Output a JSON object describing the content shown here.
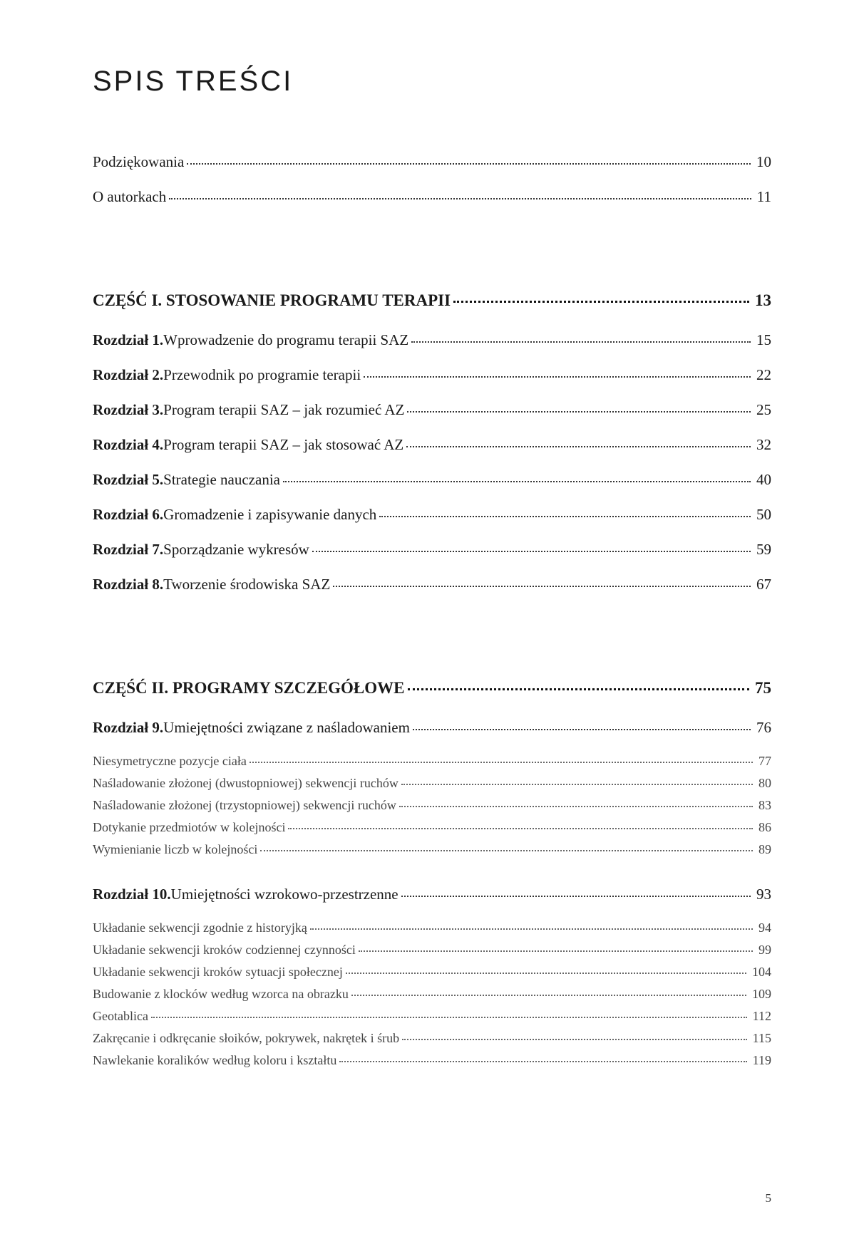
{
  "title": "SPIS TREŚCI",
  "pageNumber": "5",
  "colors": {
    "text": "#1a1a1a",
    "subtext": "#444444",
    "dots": "#333333",
    "background": "#ffffff"
  },
  "typography": {
    "title_fontsize": 40,
    "entry_fontsize": 21,
    "part_fontsize": 23,
    "sub_fontsize": 18
  },
  "intro": [
    {
      "label": "Podziękowania",
      "page": "10"
    },
    {
      "label": "O autorkach",
      "page": "11"
    }
  ],
  "parts": [
    {
      "heading": "CZĘŚĆ I. STOSOWANIE PROGRAMU TERAPII",
      "page": "13",
      "chapters": [
        {
          "prefix": "Rozdział 1.",
          "label": " Wprowadzenie do programu terapii SAZ",
          "page": "15"
        },
        {
          "prefix": "Rozdział 2.",
          "label": " Przewodnik po programie terapii",
          "page": "22"
        },
        {
          "prefix": "Rozdział 3.",
          "label": " Program terapii SAZ – jak rozumieć AZ",
          "page": "25"
        },
        {
          "prefix": "Rozdział 4.",
          "label": " Program terapii SAZ – jak stosować AZ",
          "page": "32"
        },
        {
          "prefix": "Rozdział 5.",
          "label": " Strategie nauczania",
          "page": "40"
        },
        {
          "prefix": "Rozdział 6.",
          "label": " Gromadzenie i zapisywanie danych",
          "page": "50"
        },
        {
          "prefix": "Rozdział 7.",
          "label": " Sporządzanie wykresów",
          "page": "59"
        },
        {
          "prefix": "Rozdział 8.",
          "label": " Tworzenie środowiska SAZ",
          "page": "67"
        }
      ]
    },
    {
      "heading": "CZĘŚĆ II. PROGRAMY SZCZEGÓŁOWE",
      "page": "75",
      "chapters": [
        {
          "prefix": "Rozdział 9.",
          "label": " Umiejętności związane z naśladowaniem",
          "page": "76",
          "subs": [
            {
              "label": "Niesymetryczne pozycje ciała",
              "page": "77"
            },
            {
              "label": "Naśladowanie złożonej (dwustopniowej) sekwencji ruchów",
              "page": "80"
            },
            {
              "label": "Naśladowanie złożonej (trzystopniowej) sekwencji ruchów",
              "page": "83"
            },
            {
              "label": "Dotykanie przedmiotów w kolejności",
              "page": "86"
            },
            {
              "label": "Wymienianie liczb w kolejności",
              "page": "89"
            }
          ]
        },
        {
          "prefix": "Rozdział 10.",
          "label": " Umiejętności wzrokowo-przestrzenne",
          "page": "93",
          "subs": [
            {
              "label": "Układanie sekwencji zgodnie z historyjką",
              "page": "94"
            },
            {
              "label": "Układanie sekwencji kroków codziennej czynności",
              "page": "99"
            },
            {
              "label": "Układanie sekwencji kroków sytuacji społecznej",
              "page": "104"
            },
            {
              "label": "Budowanie z klocków według wzorca na obrazku",
              "page": "109"
            },
            {
              "label": "Geotablica",
              "page": "112"
            },
            {
              "label": "Zakręcanie i odkręcanie słoików, pokrywek, nakrętek i śrub",
              "page": "115"
            },
            {
              "label": "Nawlekanie koralików według koloru i kształtu",
              "page": "119"
            }
          ]
        }
      ]
    }
  ]
}
